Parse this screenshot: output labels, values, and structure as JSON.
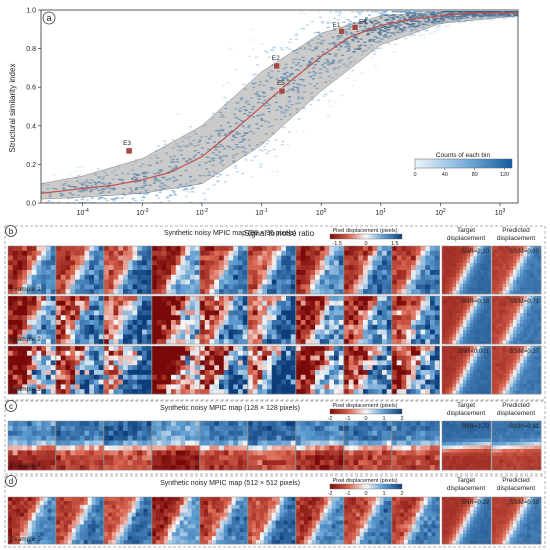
{
  "panel_a": {
    "letter": "a",
    "chart_data": {
      "type": "scatter",
      "xlabel": "Signal to noise ratio",
      "ylabel": "Structural similarity index",
      "xscale": "log",
      "xlim": [
        2e-05,
        2000
      ],
      "ylim": [
        0.0,
        1.0
      ],
      "x_ticks": [
        {
          "value": 0.0001,
          "label": "10",
          "exp": "-4"
        },
        {
          "value": 0.001,
          "label": "10",
          "exp": "-3"
        },
        {
          "value": 0.01,
          "label": "10",
          "exp": "-2"
        },
        {
          "value": 0.1,
          "label": "10",
          "exp": "-1"
        },
        {
          "value": 1,
          "label": "10",
          "exp": "0"
        },
        {
          "value": 10,
          "label": "10",
          "exp": "1"
        },
        {
          "value": 100,
          "label": "10",
          "exp": "2"
        },
        {
          "value": 1000,
          "label": "10",
          "exp": "3"
        }
      ],
      "y_ticks": [
        {
          "value": 0.0,
          "label": "0.0"
        },
        {
          "value": 0.2,
          "label": "0.2"
        },
        {
          "value": 0.4,
          "label": "0.4"
        },
        {
          "value": 0.6,
          "label": "0.6"
        },
        {
          "value": 0.8,
          "label": "0.8"
        },
        {
          "value": 1.0,
          "label": "1.0"
        }
      ],
      "mean_curve": [
        [
          2e-05,
          0.05
        ],
        [
          0.0001,
          0.075
        ],
        [
          0.0003,
          0.09
        ],
        [
          0.001,
          0.12
        ],
        [
          0.003,
          0.16
        ],
        [
          0.01,
          0.24
        ],
        [
          0.03,
          0.36
        ],
        [
          0.1,
          0.5
        ],
        [
          0.3,
          0.63
        ],
        [
          1,
          0.76
        ],
        [
          3,
          0.86
        ],
        [
          10,
          0.92
        ],
        [
          30,
          0.95
        ],
        [
          100,
          0.97
        ],
        [
          300,
          0.985
        ],
        [
          2000,
          0.985
        ]
      ],
      "band_upper": [
        [
          2e-05,
          0.1
        ],
        [
          0.0001,
          0.14
        ],
        [
          0.001,
          0.23
        ],
        [
          0.01,
          0.4
        ],
        [
          0.1,
          0.68
        ],
        [
          1,
          0.88
        ],
        [
          10,
          0.97
        ],
        [
          100,
          0.99
        ],
        [
          2000,
          0.99
        ]
      ],
      "band_lower": [
        [
          2e-05,
          0.02
        ],
        [
          0.0001,
          0.03
        ],
        [
          0.001,
          0.05
        ],
        [
          0.01,
          0.1
        ],
        [
          0.1,
          0.3
        ],
        [
          1,
          0.58
        ],
        [
          10,
          0.82
        ],
        [
          100,
          0.93
        ],
        [
          2000,
          0.97
        ]
      ],
      "examples": [
        {
          "label": "E1",
          "snr": 2.2,
          "ssim": 0.89
        },
        {
          "label": "E4",
          "snr": 3.7,
          "ssim": 0.91
        },
        {
          "label": "E2",
          "snr": 0.18,
          "ssim": 0.71
        },
        {
          "label": "E5",
          "snr": 0.22,
          "ssim": 0.58
        },
        {
          "label": "E3",
          "snr": 0.0006,
          "ssim": 0.27
        }
      ],
      "colorbar": {
        "title": "Counts of each bin",
        "ticks": [
          {
            "value": 0,
            "label": "0"
          },
          {
            "value": 40,
            "label": "40"
          },
          {
            "value": 80,
            "label": "80"
          },
          {
            "value": 120,
            "label": "120"
          }
        ],
        "range": [
          0,
          130
        ]
      },
      "colors": {
        "density": "#2a78c2",
        "mean": "#c0504d",
        "band": "#8c8c8c",
        "marker": "#a44a45"
      }
    }
  },
  "panel_b": {
    "letter": "b",
    "title": "Synthetic noisy MPIC map (96 × 96 pixels)",
    "colorbar": {
      "title": "Pixel displacement (pixels)",
      "ticks": [
        "-1.5",
        "0",
        "1.5"
      ]
    },
    "headers": {
      "target": [
        "Target",
        "displacement"
      ],
      "predicted": [
        "Predicted",
        "displacement"
      ]
    },
    "rows": [
      {
        "label": "Example 1",
        "snr": "SNR=2.20",
        "ssim": "SSIM=0.89",
        "noise": 0.35
      },
      {
        "label": "Example 2",
        "snr": "SNR=0.18",
        "ssim": "SSIM=0.71",
        "noise": 0.7
      },
      {
        "label": "Example 3",
        "snr": "SNR<0.001",
        "ssim": "SSIM=0.27",
        "noise": 1.0
      }
    ]
  },
  "panel_c": {
    "letter": "c",
    "title": "Synthetic noisy MPIC map (128 × 128 pixels)",
    "colorbar": {
      "title": "Pixel displacement (pixels)",
      "ticks": [
        "-2",
        "-1",
        "0",
        "1",
        "2"
      ]
    },
    "headers": {
      "target": [
        "Target",
        "displacement"
      ],
      "predicted": [
        "Predicted",
        "displacement"
      ]
    },
    "rows": [
      {
        "label": "Example 4",
        "snr": "SNR=3.70",
        "ssim": "SSIM=0.91",
        "noise": 0.3
      }
    ]
  },
  "panel_d": {
    "letter": "d",
    "title": "Synthetic noisy MPIC map (512 × 512 pixels)",
    "colorbar": {
      "title": "Pixel displacement (pixels)",
      "ticks": [
        "-2",
        "-1",
        "0",
        "1",
        "2"
      ]
    },
    "headers": {
      "target": [
        "Target",
        "displacement"
      ],
      "predicted": [
        "Predicted",
        "displacement"
      ]
    },
    "rows": [
      {
        "label": "Example 5",
        "snr": "SNR=0.22",
        "ssim": "SSIM=0.58",
        "noise": 0.25
      }
    ]
  }
}
